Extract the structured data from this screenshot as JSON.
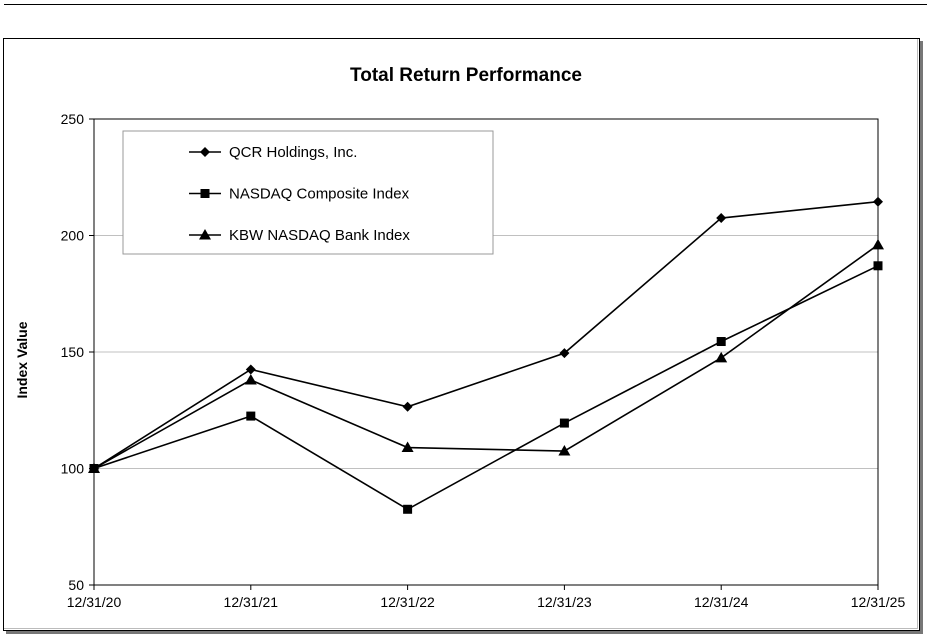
{
  "chart_data": {
    "type": "line",
    "title": "Total Return Performance",
    "xlabel": "",
    "ylabel": "Index Value",
    "categories": [
      "12/31/20",
      "12/31/21",
      "12/31/22",
      "12/31/23",
      "12/31/24",
      "12/31/25"
    ],
    "ylim": [
      50,
      250
    ],
    "yticks": [
      "50",
      "100",
      "150",
      "200",
      "250"
    ],
    "grid": true,
    "legend_position": "top-left",
    "series": [
      {
        "name": "QCR Holdings, Inc.",
        "marker": "diamond",
        "values": [
          100,
          142.5,
          126.5,
          149.5,
          207.5,
          214.5
        ]
      },
      {
        "name": "NASDAQ Composite Index",
        "marker": "square",
        "values": [
          100,
          122.5,
          82.5,
          119.5,
          154.5,
          187
        ]
      },
      {
        "name": "KBW NASDAQ Bank Index",
        "marker": "triangle",
        "values": [
          100,
          138,
          109,
          107.5,
          147.5,
          196
        ]
      }
    ],
    "colors": {
      "line": "#000000",
      "grid": "#c0c0c0",
      "background": "#ffffff"
    }
  }
}
